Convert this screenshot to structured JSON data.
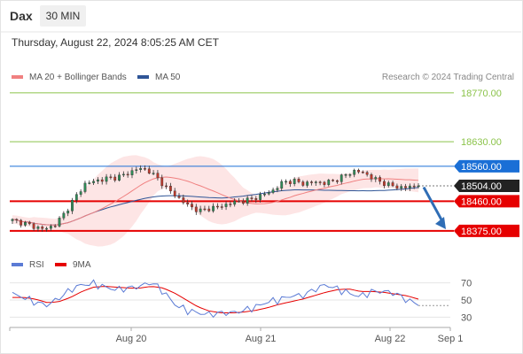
{
  "header": {
    "symbol": "Dax",
    "timeframe": "30 MIN"
  },
  "datetime": "Thursday, August 22, 2024 8:05:25 AM CET",
  "credit": "Research © 2024 Trading Central",
  "colors": {
    "candle_up": "#2e8b57",
    "candle_down": "#c0392b",
    "target_green": "#8bc34a",
    "pivot_blue": "#1a6fd6",
    "support_red": "#e60000",
    "ma20_bb": "#f08080",
    "ma50": "#2f5597",
    "rsi": "#5b7bd5",
    "rsi_ma": "#e60000",
    "arrow": "#2f6db5"
  },
  "chart_data": [
    {
      "type": "candlestick",
      "legend": [
        {
          "label": "MA 20 + Bollinger Bands",
          "color": "#f08080"
        },
        {
          "label": "MA 50",
          "color": "#2f5597"
        }
      ],
      "ylim": [
        18352,
        18795
      ],
      "levels": [
        {
          "value": 18770.0,
          "label": "18770.00",
          "role": "target"
        },
        {
          "value": 18630.0,
          "label": "18630.00",
          "role": "target"
        },
        {
          "value": 18560.0,
          "label": "18560.00",
          "role": "pivot"
        },
        {
          "value": 18504.0,
          "label": "18504.00",
          "role": "last"
        },
        {
          "value": 18460.0,
          "label": "18460.00",
          "role": "support"
        },
        {
          "value": 18375.0,
          "label": "18375.00",
          "role": "support"
        }
      ],
      "candle_count": 96,
      "price_path": [
        18405,
        18398,
        18388,
        18380,
        18390,
        18425,
        18470,
        18510,
        18518,
        18525,
        18528,
        18538,
        18553,
        18550,
        18523,
        18492,
        18468,
        18445,
        18432,
        18440,
        18445,
        18455,
        18460,
        18466,
        18478,
        18490,
        18515,
        18518,
        18510,
        18515,
        18512,
        18520,
        18535,
        18548,
        18537,
        18520,
        18508,
        18500,
        18500,
        18504
      ],
      "arrow": {
        "direction": "down",
        "from_value": 18500,
        "to_value": 18380
      }
    },
    {
      "type": "line",
      "legend": [
        {
          "label": "RSI",
          "color": "#5b7bd5"
        },
        {
          "label": "9MA",
          "color": "#e60000"
        }
      ],
      "ylim": [
        20,
        80
      ],
      "yticks": [
        70,
        50,
        30
      ],
      "rsi_path": [
        57,
        53,
        47,
        44,
        52,
        62,
        68,
        69,
        65,
        62,
        64,
        66,
        71,
        60,
        45,
        38,
        35,
        33,
        35,
        35,
        38,
        42,
        48,
        50,
        55,
        55,
        62,
        68,
        63,
        58,
        54,
        60,
        60,
        58,
        50,
        45
      ],
      "ma9_path": [
        53,
        53,
        51,
        47,
        48,
        53,
        60,
        65,
        66,
        65,
        64,
        64,
        66,
        64,
        58,
        50,
        42,
        37,
        35,
        35,
        36,
        38,
        41,
        45,
        48,
        51,
        55,
        59,
        62,
        63,
        60,
        60,
        59,
        57,
        55,
        51
      ]
    }
  ],
  "xaxis": {
    "labels": [
      "Aug 20",
      "Aug 21",
      "Aug 22",
      "Sep 1"
    ]
  }
}
